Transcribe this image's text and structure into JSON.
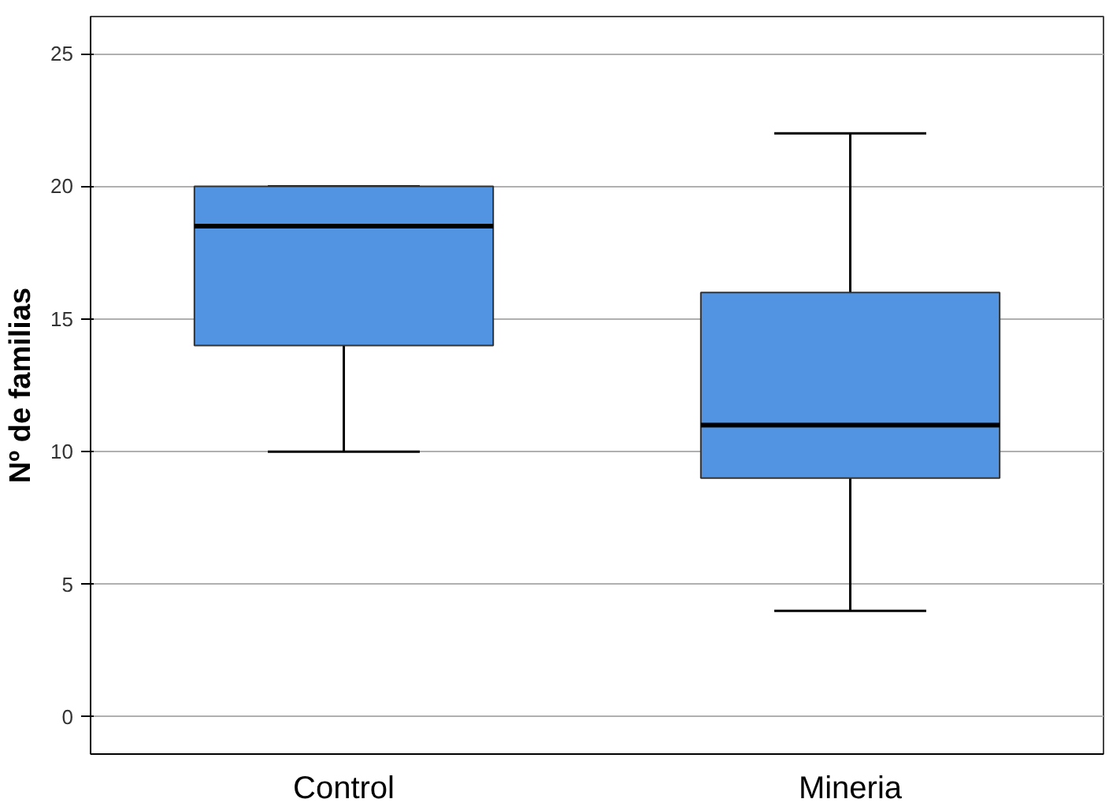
{
  "chart_data": {
    "type": "box",
    "categories": [
      "Control",
      "Mineria"
    ],
    "boxes": [
      {
        "low": 10,
        "q1": 14,
        "median": 18.5,
        "q3": 20,
        "high": 20
      },
      {
        "low": 4,
        "q1": 9,
        "median": 11,
        "q3": 16,
        "high": 22
      }
    ],
    "color": "#5294e2",
    "ylabel": "Nº de familias",
    "ylim": [
      -1.4,
      26.4
    ],
    "yticks": [
      0,
      5,
      10,
      15,
      20,
      25
    ],
    "grid": "y"
  }
}
